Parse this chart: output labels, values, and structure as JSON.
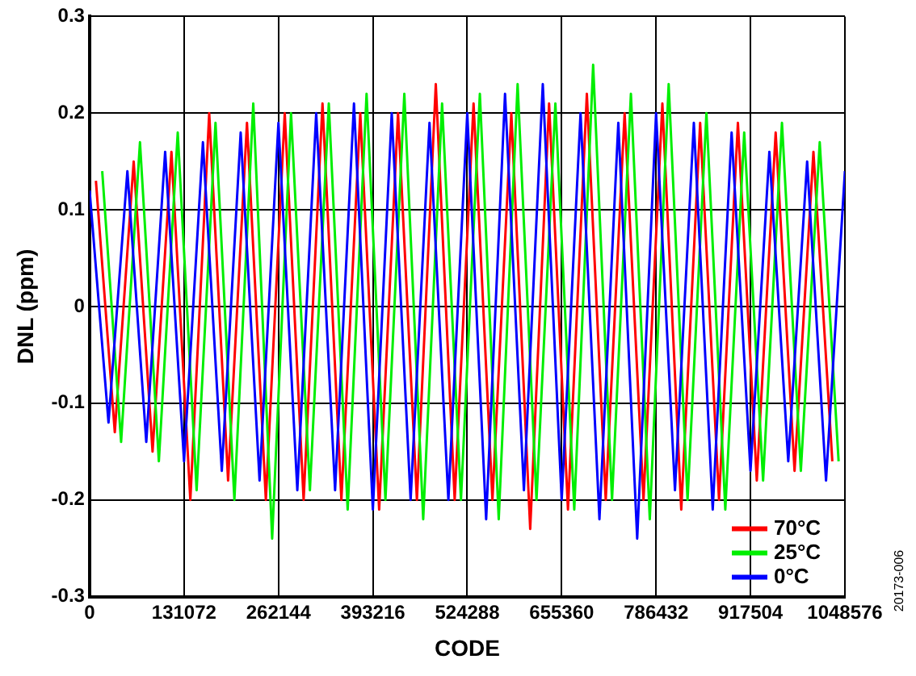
{
  "chart_data": {
    "type": "line",
    "xlabel": "CODE",
    "ylabel": "DNL (ppm)",
    "xlim": [
      0,
      1048576
    ],
    "xticks": [
      0,
      131072,
      262144,
      393216,
      524288,
      655360,
      786432,
      917504,
      1048576
    ],
    "ylim": [
      -0.3,
      0.3
    ],
    "yticks": [
      -0.3,
      -0.2,
      -0.1,
      0,
      0.1,
      0.2,
      0.3
    ],
    "grid": true,
    "legend": "bottom right",
    "marker": "none",
    "line_style": "solid",
    "annotations": [
      "20173-006"
    ],
    "x": [
      0,
      26214,
      52428,
      78642,
      104856,
      131070,
      157284,
      183498,
      209712,
      235926,
      262140,
      288354,
      314568,
      340782,
      366996,
      393210,
      419424,
      445638,
      471852,
      498066,
      524280,
      550494,
      576708,
      602922,
      629136,
      655350,
      681564,
      707778,
      733992,
      760206,
      786420,
      812634,
      838848,
      865062,
      891276,
      917490,
      943704,
      969918,
      996132,
      1022346,
      1048576
    ],
    "series": [
      {
        "name": "70°C",
        "color": "#ff0000",
        "x": [
          8738,
          34952,
          61166,
          87380,
          113594,
          139808,
          166022,
          192236,
          218450,
          244664,
          270878,
          297092,
          323306,
          349520,
          375734,
          401948,
          428162,
          454376,
          480590,
          506804,
          533018,
          559232,
          585446,
          611660,
          637874,
          664088,
          690302,
          716516,
          742730,
          768944,
          795158,
          821372,
          847586,
          873800,
          900014,
          926228,
          952442,
          978656,
          1004870,
          1031084
        ],
        "values": [
          0.13,
          -0.13,
          0.15,
          -0.15,
          0.16,
          -0.2,
          0.2,
          -0.18,
          0.19,
          -0.2,
          0.2,
          -0.2,
          0.21,
          -0.2,
          0.2,
          -0.21,
          0.2,
          -0.2,
          0.23,
          -0.2,
          0.21,
          -0.2,
          0.2,
          -0.23,
          0.21,
          -0.21,
          0.22,
          -0.2,
          0.2,
          -0.2,
          0.21,
          -0.21,
          0.19,
          -0.2,
          0.19,
          -0.18,
          0.18,
          -0.17,
          0.16,
          -0.16
        ]
      },
      {
        "name": "25°C",
        "color": "#00ee00",
        "x": [
          17476,
          43690,
          69904,
          96118,
          122332,
          148546,
          174760,
          200974,
          227188,
          253402,
          279616,
          305830,
          332044,
          358258,
          384472,
          410686,
          436900,
          463114,
          489328,
          515542,
          541756,
          567970,
          594184,
          620398,
          646612,
          672826,
          699040,
          725254,
          751468,
          777682,
          803896,
          830110,
          856324,
          882538,
          908752,
          934966,
          961180,
          987394,
          1013608,
          1039822
        ],
        "values": [
          0.14,
          -0.14,
          0.17,
          -0.16,
          0.18,
          -0.19,
          0.19,
          -0.2,
          0.21,
          -0.24,
          0.2,
          -0.19,
          0.21,
          -0.21,
          0.22,
          -0.2,
          0.22,
          -0.22,
          0.21,
          -0.2,
          0.22,
          -0.22,
          0.23,
          -0.2,
          0.21,
          -0.21,
          0.25,
          -0.2,
          0.22,
          -0.22,
          0.23,
          -0.2,
          0.2,
          -0.21,
          0.18,
          -0.18,
          0.19,
          -0.17,
          0.17,
          -0.16
        ]
      },
      {
        "name": "0°C",
        "color": "#0000ff",
        "values": [
          0.12,
          -0.12,
          0.14,
          -0.14,
          0.16,
          -0.16,
          0.17,
          -0.17,
          0.18,
          -0.18,
          0.19,
          -0.19,
          0.2,
          -0.19,
          0.21,
          -0.21,
          0.2,
          -0.2,
          0.19,
          -0.2,
          0.2,
          -0.22,
          0.22,
          -0.19,
          0.23,
          -0.2,
          0.2,
          -0.22,
          0.19,
          -0.24,
          0.2,
          -0.19,
          0.19,
          -0.21,
          0.18,
          -0.17,
          0.16,
          -0.16,
          0.15,
          -0.18,
          0.14
        ]
      }
    ]
  }
}
